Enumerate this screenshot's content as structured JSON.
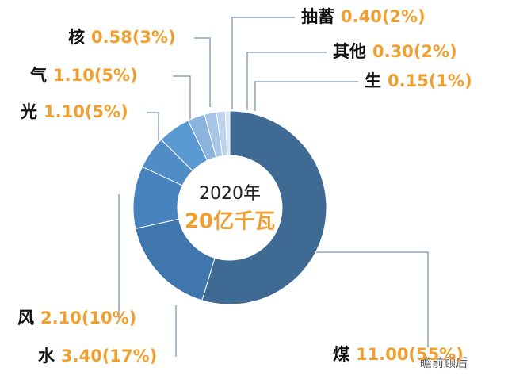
{
  "chart_data": {
    "type": "donut",
    "center_title": "2020年",
    "center_subtitle": "20亿千瓦",
    "watermark": "瞻前顾后",
    "categories": [
      "煤",
      "水",
      "风",
      "光",
      "气",
      "核",
      "抽蓄",
      "其他",
      "生"
    ],
    "values": [
      11.0,
      3.4,
      2.1,
      1.1,
      1.1,
      0.58,
      0.4,
      0.3,
      0.15
    ],
    "value_labels": [
      "11.00(55%)",
      "3.40(17%)",
      "2.10(10%)",
      "1.10(5%)",
      "1.10(5%)",
      "0.58(3%)",
      "0.40(2%)",
      "0.30(2%)",
      "0.15(1%)"
    ],
    "colors": [
      "#3e6a94",
      "#3f76ad",
      "#4682bd",
      "#508dc6",
      "#5b99d3",
      "#8cb2de",
      "#a8c4e6",
      "#bdd3ec",
      "#d6e4f3"
    ]
  }
}
